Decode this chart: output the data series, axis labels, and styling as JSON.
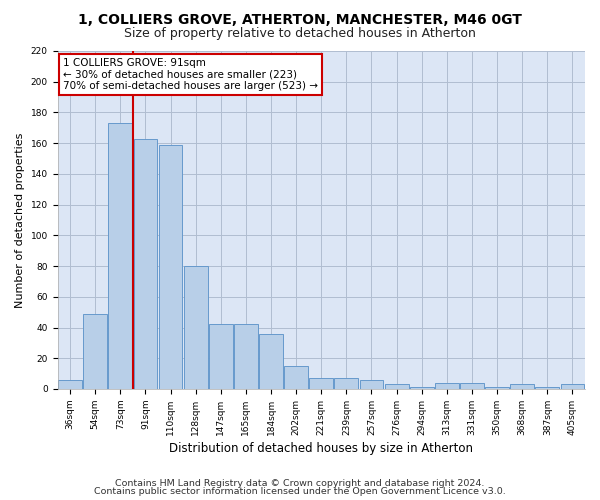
{
  "title1": "1, COLLIERS GROVE, ATHERTON, MANCHESTER, M46 0GT",
  "title2": "Size of property relative to detached houses in Atherton",
  "xlabel": "Distribution of detached houses by size in Atherton",
  "ylabel": "Number of detached properties",
  "footnote1": "Contains HM Land Registry data © Crown copyright and database right 2024.",
  "footnote2": "Contains public sector information licensed under the Open Government Licence v3.0.",
  "bar_values": [
    6,
    49,
    173,
    163,
    159,
    80,
    42,
    42,
    36,
    15,
    7,
    7,
    6,
    3,
    1,
    4,
    4,
    1,
    3,
    1,
    3
  ],
  "tick_labels": [
    "36sqm",
    "54sqm",
    "73sqm",
    "91sqm",
    "110sqm",
    "128sqm",
    "147sqm",
    "165sqm",
    "184sqm",
    "202sqm",
    "221sqm",
    "239sqm",
    "257sqm",
    "276sqm",
    "294sqm",
    "313sqm",
    "331sqm",
    "350sqm",
    "368sqm",
    "387sqm",
    "405sqm"
  ],
  "bar_color": "#b8cfe8",
  "bar_edge_color": "#6699cc",
  "red_line_color": "#cc0000",
  "red_line_bin": 3,
  "annotation_text": "1 COLLIERS GROVE: 91sqm\n← 30% of detached houses are smaller (223)\n70% of semi-detached houses are larger (523) →",
  "annotation_box_facecolor": "#ffffff",
  "annotation_box_edgecolor": "#cc0000",
  "ylim": [
    0,
    220
  ],
  "yticks": [
    0,
    20,
    40,
    60,
    80,
    100,
    120,
    140,
    160,
    180,
    200,
    220
  ],
  "bg_color": "#ffffff",
  "plot_bg_color": "#dce6f5",
  "grid_color": "#b0bdd0",
  "title1_fontsize": 10,
  "title2_fontsize": 9,
  "axis_label_fontsize": 8.5,
  "ylabel_fontsize": 8,
  "tick_fontsize": 6.5,
  "annot_fontsize": 7.5,
  "footnote_fontsize": 6.8
}
